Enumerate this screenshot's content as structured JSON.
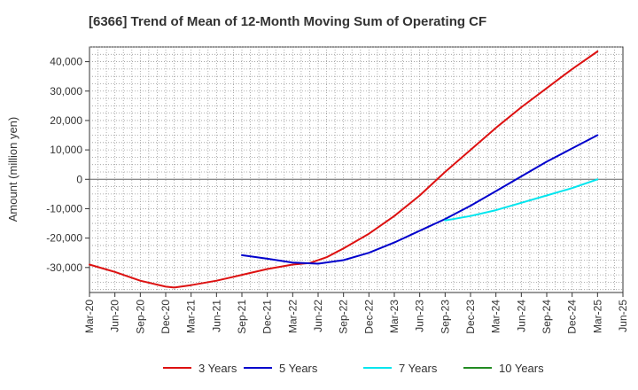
{
  "chart_data": {
    "type": "line",
    "title": "[6366]  Trend of Mean of 12-Month Moving Sum of Operating CF",
    "ylabel": "Amount (million yen)",
    "xlabel": "",
    "ylim": [
      -38500,
      45000
    ],
    "yticks": [
      -30000,
      -20000,
      -10000,
      0,
      10000,
      20000,
      30000,
      40000
    ],
    "ytick_labels": [
      "-30,000",
      "-20,000",
      "-10,000",
      "0",
      "10,000",
      "20,000",
      "30,000",
      "40,000"
    ],
    "xlim": [
      0,
      63
    ],
    "xtick_labels": [
      "Mar-20",
      "Jun-20",
      "Sep-20",
      "Dec-20",
      "Mar-21",
      "Jun-21",
      "Sep-21",
      "Dec-21",
      "Mar-22",
      "Jun-22",
      "Sep-22",
      "Dec-22",
      "Mar-23",
      "Jun-23",
      "Sep-23",
      "Dec-23",
      "Mar-24",
      "Jun-24",
      "Sep-24",
      "Dec-24",
      "Mar-25",
      "Jun-25"
    ],
    "legend_position": "bottom",
    "series": [
      {
        "name": "3 Years",
        "color": "#dd1111",
        "points": [
          [
            0,
            -29000
          ],
          [
            3,
            -31500
          ],
          [
            6,
            -34500
          ],
          [
            9,
            -36500
          ],
          [
            10,
            -36800
          ],
          [
            12,
            -36000
          ],
          [
            15,
            -34500
          ],
          [
            18,
            -32500
          ],
          [
            21,
            -30500
          ],
          [
            24,
            -29000
          ],
          [
            26,
            -28500
          ],
          [
            28,
            -26500
          ],
          [
            30,
            -23500
          ],
          [
            33,
            -18500
          ],
          [
            36,
            -12500
          ],
          [
            39,
            -5500
          ],
          [
            42,
            2500
          ],
          [
            45,
            10000
          ],
          [
            48,
            17500
          ],
          [
            51,
            24500
          ],
          [
            54,
            31000
          ],
          [
            57,
            37500
          ],
          [
            60,
            43500
          ]
        ]
      },
      {
        "name": "5 Years",
        "color": "#0000cc",
        "points": [
          [
            18,
            -25800
          ],
          [
            21,
            -27000
          ],
          [
            24,
            -28300
          ],
          [
            27,
            -28700
          ],
          [
            30,
            -27500
          ],
          [
            33,
            -25000
          ],
          [
            36,
            -21500
          ],
          [
            39,
            -17500
          ],
          [
            42,
            -13500
          ],
          [
            45,
            -9000
          ],
          [
            48,
            -4000
          ],
          [
            51,
            1000
          ],
          [
            54,
            6000
          ],
          [
            57,
            10500
          ],
          [
            60,
            15000
          ]
        ]
      },
      {
        "name": "7 Years",
        "color": "#00e5ee",
        "points": [
          [
            42,
            -14000
          ],
          [
            45,
            -12500
          ],
          [
            48,
            -10500
          ],
          [
            51,
            -8000
          ],
          [
            54,
            -5500
          ],
          [
            57,
            -3000
          ],
          [
            60,
            0
          ]
        ]
      },
      {
        "name": "10 Years",
        "color": "#228b22",
        "points": []
      }
    ]
  }
}
